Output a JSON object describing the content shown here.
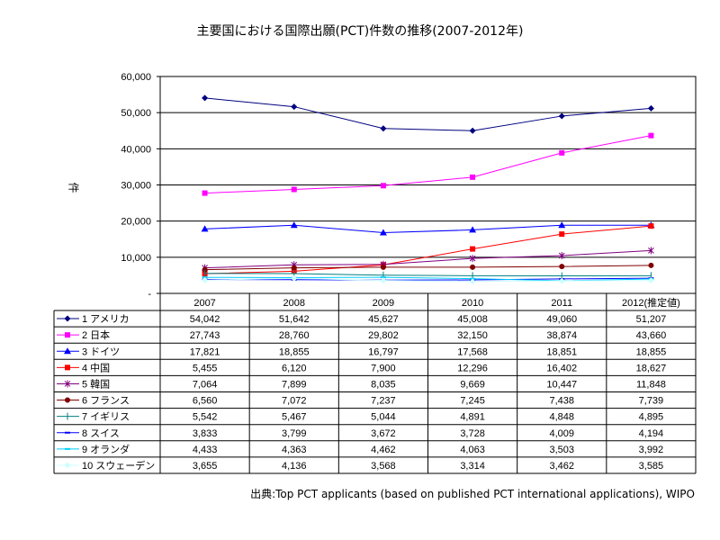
{
  "title": "主要国における国際出願(PCT)件数の推移(2007-2012年)",
  "source": "出典:Top PCT applicants (based on published PCT international applications), WIPO",
  "chart_data": {
    "type": "line",
    "title": "主要国における国際出願(PCT)件数の推移(2007-2012年)",
    "ylabel": "件",
    "xlabel": "",
    "ylim": [
      0,
      60000
    ],
    "yticks": [
      0,
      10000,
      20000,
      30000,
      40000,
      50000,
      60000
    ],
    "ytick_labels": [
      "-",
      "10,000",
      "20,000",
      "30,000",
      "40,000",
      "50,000",
      "60,000"
    ],
    "grid": true,
    "legend": "data-table-below",
    "categories": [
      "2007",
      "2008",
      "2009",
      "2010",
      "2011",
      "2012(推定値)"
    ],
    "series": [
      {
        "name": "1 アメリカ",
        "color": "#000080",
        "marker": "diamond",
        "values": [
          54042,
          51642,
          45627,
          45008,
          49060,
          51207
        ],
        "labels": [
          "54,042",
          "51,642",
          "45,627",
          "45,008",
          "49,060",
          "51,207"
        ]
      },
      {
        "name": "2 日本",
        "color": "#FF00FF",
        "marker": "square",
        "values": [
          27743,
          28760,
          29802,
          32150,
          38874,
          43660
        ],
        "labels": [
          "27,743",
          "28,760",
          "29,802",
          "32,150",
          "38,874",
          "43,660"
        ]
      },
      {
        "name": "3 ドイツ",
        "color": "#0000FF",
        "marker": "triangle",
        "values": [
          17821,
          18855,
          16797,
          17568,
          18851,
          18855
        ],
        "labels": [
          "17,821",
          "18,855",
          "16,797",
          "17,568",
          "18,851",
          "18,855"
        ]
      },
      {
        "name": "4 中国",
        "color": "#FF0000",
        "marker": "square",
        "values": [
          5455,
          6120,
          7900,
          12296,
          16402,
          18627
        ],
        "labels": [
          "5,455",
          "6,120",
          "7,900",
          "12,296",
          "16,402",
          "18,627"
        ]
      },
      {
        "name": "5 韓国",
        "color": "#800080",
        "marker": "star",
        "values": [
          7064,
          7899,
          8035,
          9669,
          10447,
          11848
        ],
        "labels": [
          "7,064",
          "7,899",
          "8,035",
          "9,669",
          "10,447",
          "11,848"
        ]
      },
      {
        "name": "6 フランス",
        "color": "#800000",
        "marker": "circle",
        "values": [
          6560,
          7072,
          7237,
          7245,
          7438,
          7739
        ],
        "labels": [
          "6,560",
          "7,072",
          "7,237",
          "7,245",
          "7,438",
          "7,739"
        ]
      },
      {
        "name": "7 イギリス",
        "color": "#008080",
        "marker": "plus",
        "values": [
          5542,
          5467,
          5044,
          4891,
          4848,
          4895
        ],
        "labels": [
          "5,542",
          "5,467",
          "5,044",
          "4,891",
          "4,848",
          "4,895"
        ]
      },
      {
        "name": "8 スイス",
        "color": "#0000FF",
        "marker": "dash",
        "values": [
          3833,
          3799,
          3672,
          3728,
          4009,
          4194
        ],
        "labels": [
          "3,833",
          "3,799",
          "3,672",
          "3,728",
          "4,009",
          "4,194"
        ]
      },
      {
        "name": "9 オランダ",
        "color": "#00CCFF",
        "marker": "dash",
        "values": [
          4433,
          4363,
          4462,
          4063,
          3503,
          3992
        ],
        "labels": [
          "4,433",
          "4,363",
          "4,462",
          "4,063",
          "3,503",
          "3,992"
        ]
      },
      {
        "name": "10 スウェーデン",
        "color": "#CCFFFF",
        "marker": "diamond",
        "values": [
          3655,
          4136,
          3568,
          3314,
          3462,
          3585
        ],
        "labels": [
          "3,655",
          "4,136",
          "3,568",
          "3,314",
          "3,462",
          "3,585"
        ]
      }
    ]
  }
}
